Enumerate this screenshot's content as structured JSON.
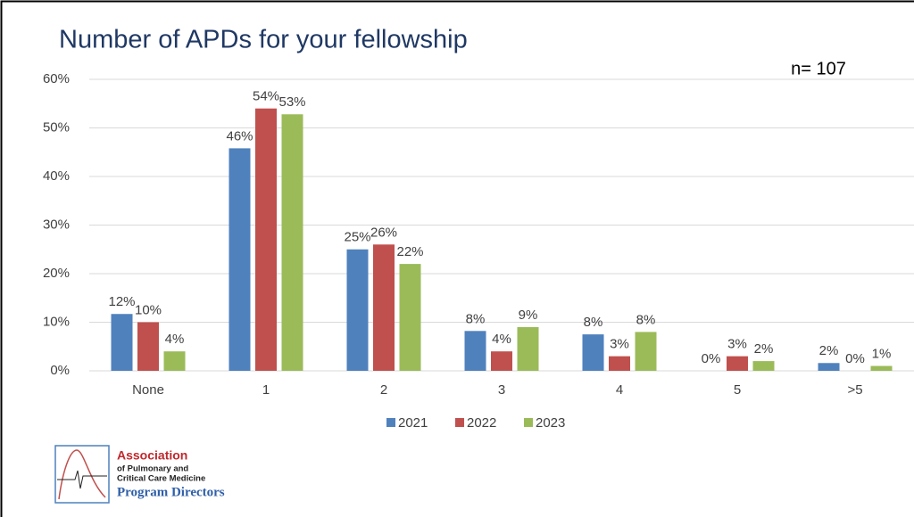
{
  "chart_data": {
    "type": "bar",
    "title": "Number of APDs for your fellowship",
    "annotation": "n= 107",
    "categories": [
      "None",
      "1",
      "2",
      "3",
      "4",
      "5",
      ">5"
    ],
    "series": [
      {
        "name": "2021",
        "color": "#4f81bd",
        "values": [
          11.7,
          45.8,
          25,
          8.2,
          7.5,
          0,
          1.6
        ],
        "value_labels": [
          "12%",
          "46%",
          "25%",
          "8%",
          "8%",
          "0%",
          "2%"
        ]
      },
      {
        "name": "2022",
        "color": "#c0504d",
        "values": [
          10,
          54,
          26,
          4,
          3,
          3,
          0
        ],
        "value_labels": [
          "10%",
          "54%",
          "26%",
          "4%",
          "3%",
          "3%",
          "0%"
        ]
      },
      {
        "name": "2023",
        "color": "#9bbb59",
        "values": [
          4,
          52.8,
          22,
          9,
          8,
          2,
          1
        ],
        "value_labels": [
          "4%",
          "53%",
          "22%",
          "9%",
          "8%",
          "2%",
          "1%"
        ]
      }
    ],
    "ylim": [
      0,
      60
    ],
    "yticks": [
      {
        "value": 0,
        "label": "0%"
      },
      {
        "value": 10,
        "label": "10%"
      },
      {
        "value": 20,
        "label": "20%"
      },
      {
        "value": 30,
        "label": "30%"
      },
      {
        "value": 40,
        "label": "40%"
      },
      {
        "value": 50,
        "label": "50%"
      },
      {
        "value": 60,
        "label": "60%"
      }
    ],
    "grid": true,
    "legend": "bottom"
  },
  "logo": {
    "line1": "Association",
    "line2": "of Pulmonary and",
    "line3": "Critical Care Medicine",
    "line4": "Program Directors"
  }
}
